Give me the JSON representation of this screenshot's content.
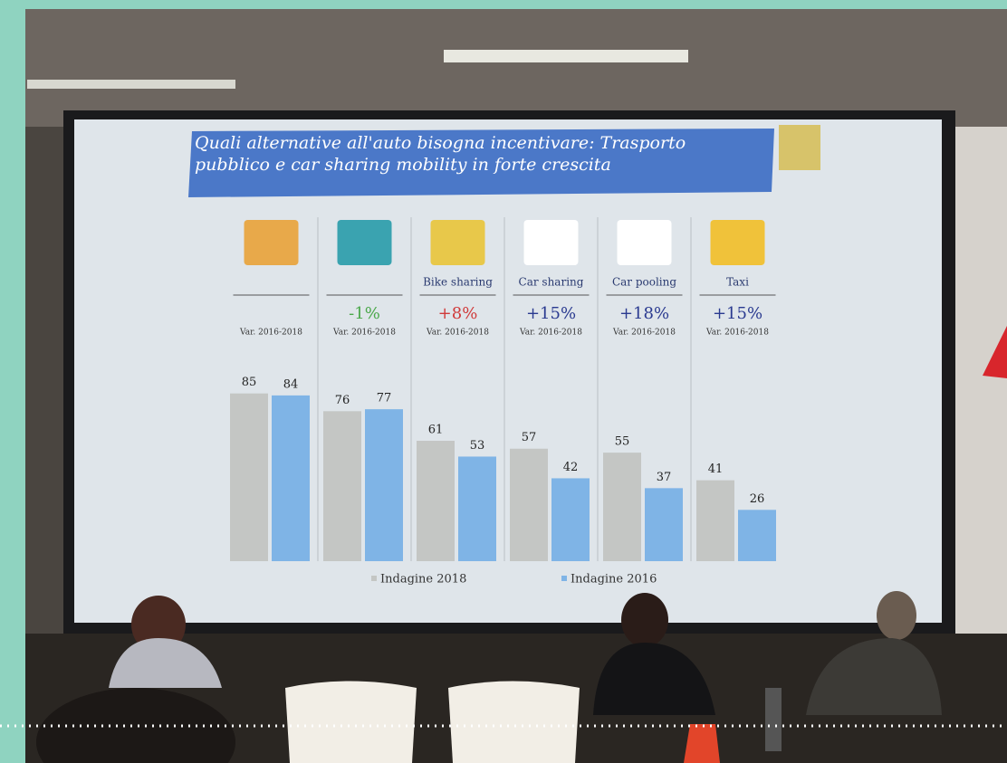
{
  "chart_data": {
    "type": "bar",
    "title": "Quali alternative all'auto bisogna incentivare: Trasporto pubblico e car sharing mobility in forte crescita",
    "categories": [
      null,
      null,
      "Bike sharing",
      "Car sharing",
      "Car pooling",
      "Taxi"
    ],
    "changes": [
      null,
      "-1%",
      "+8%",
      "+15%",
      "+18%",
      "+15%"
    ],
    "change_note": "Var. 2016-2018",
    "series": [
      {
        "name": "Indagine 2018",
        "color": "#c4c6c4",
        "values": [
          85,
          76,
          61,
          57,
          55,
          41
        ]
      },
      {
        "name": "Indagine 2016",
        "color": "#7fb4e6",
        "values": [
          84,
          77,
          53,
          42,
          37,
          26
        ]
      }
    ]
  }
}
